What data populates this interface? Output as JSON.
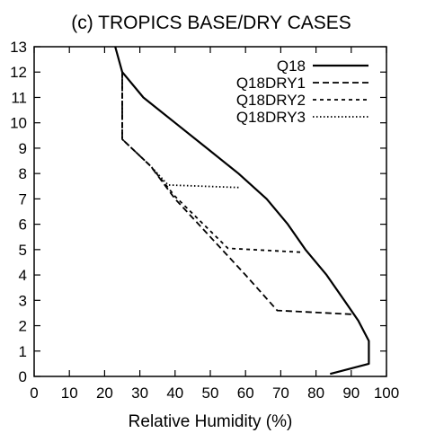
{
  "chart_data": {
    "type": "line",
    "title": "(c) TROPICS BASE/DRY CASES",
    "xlabel": "Relative Humidity (%)",
    "ylabel": "",
    "xlim": [
      0,
      100
    ],
    "ylim": [
      0,
      13
    ],
    "xticks": [
      0,
      10,
      20,
      30,
      40,
      50,
      60,
      70,
      80,
      90,
      100
    ],
    "yticks": [
      0,
      1,
      2,
      3,
      4,
      5,
      6,
      7,
      8,
      9,
      10,
      11,
      12,
      13
    ],
    "grid": false,
    "legend_position": "top-right",
    "series": [
      {
        "name": "Q18",
        "style": "solid",
        "x": [
          84,
          95,
          95,
          92,
          88,
          83,
          77,
          72,
          66,
          58,
          49,
          40,
          31,
          25,
          23
        ],
        "y": [
          0.1,
          0.5,
          1.4,
          2.2,
          3.0,
          4.0,
          5.0,
          6.0,
          7.0,
          8.0,
          9.0,
          10.0,
          11.0,
          12.0,
          13.0
        ]
      },
      {
        "name": "Q18DRY1",
        "style": "dashed",
        "x": [
          90,
          69,
          60,
          50,
          40,
          33,
          25,
          25
        ],
        "y": [
          2.45,
          2.6,
          4.0,
          5.5,
          7.0,
          8.3,
          9.35,
          12.0
        ]
      },
      {
        "name": "Q18DRY2",
        "style": "short-dashed",
        "x": [
          75.5,
          55,
          40,
          33,
          25,
          25
        ],
        "y": [
          4.9,
          5.05,
          7.1,
          8.3,
          9.35,
          12.0
        ]
      },
      {
        "name": "Q18DRY3",
        "style": "dotted",
        "x": [
          58,
          38,
          33,
          25,
          25
        ],
        "y": [
          7.45,
          7.55,
          8.3,
          9.35,
          12.0
        ]
      }
    ]
  },
  "colors": {
    "line": "#000000",
    "background": "#ffffff"
  }
}
